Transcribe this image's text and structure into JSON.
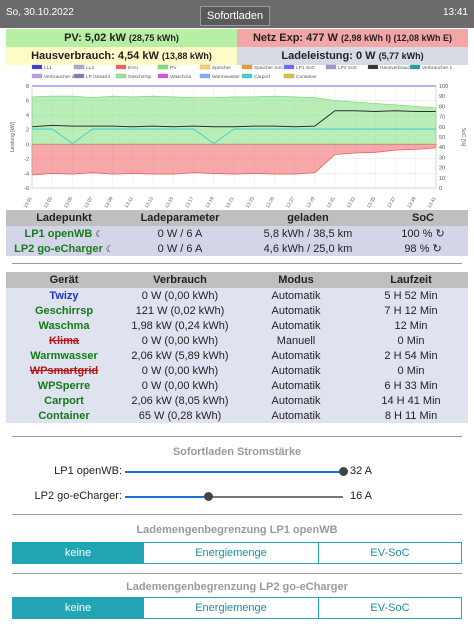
{
  "header": {
    "date": "So, 30.10.2022",
    "title": "Sofortladen",
    "time": "13:41"
  },
  "summary": {
    "pv_label": "PV: 5,02 kW",
    "pv_detail": "(28,75 kWh)",
    "netz_label": "Netz Exp: 477 W",
    "netz_detail": "(2,98 kWh I) (12,08 kWh E)",
    "haus_label": "Hausverbrauch: 4,54 kW",
    "haus_detail": "(13,88 kWh)",
    "lade_label": "Ladeleistung: 0 W",
    "lade_detail": "(5,77 kWh)"
  },
  "chart_data": {
    "type": "area",
    "legend_position": "top",
    "legend": [
      {
        "name": "LL1",
        "color": "#3b3bd6"
      },
      {
        "name": "LL2",
        "color": "#a8a8d8"
      },
      {
        "name": "EVU",
        "color": "#f06060"
      },
      {
        "name": "PV",
        "color": "#80e080"
      },
      {
        "name": "Speicher",
        "color": "#ffd070"
      },
      {
        "name": "Speicher SoC",
        "color": "#f0a020"
      },
      {
        "name": "LP1 SoC",
        "color": "#6a6aff"
      },
      {
        "name": "LP2 SoC",
        "color": "#9a9ada"
      },
      {
        "name": "Hausverbrauch",
        "color": "#303030"
      },
      {
        "name": "Verbraucher 1",
        "color": "#20a0a0"
      },
      {
        "name": "Verbraucher 2",
        "color": "#c0a0e0"
      },
      {
        "name": "LP Gesamt",
        "color": "#8080c0"
      },
      {
        "name": "Geschirrsp",
        "color": "#a0e0a0"
      },
      {
        "name": "Waschma",
        "color": "#e050e0"
      },
      {
        "name": "Warmwasser",
        "color": "#7fb0ff"
      },
      {
        "name": "Carport",
        "color": "#40d0d0"
      },
      {
        "name": "Container",
        "color": "#e0c040"
      }
    ],
    "ylabel_left": "Leistung [kW]",
    "ylabel_right": "SoC [%]",
    "ylim_left": [
      -6,
      8
    ],
    "yticks_left": [
      8,
      6,
      4,
      2,
      0,
      -2,
      -4,
      -6
    ],
    "ylim_right": [
      0,
      100
    ],
    "yticks_right": [
      100,
      90,
      80,
      70,
      60,
      50,
      40,
      30,
      20,
      10,
      0
    ],
    "grid": true,
    "x": [
      "13:01",
      "13:03",
      "13:05",
      "13:07",
      "13:09",
      "13:11",
      "13:13",
      "13:15",
      "13:17",
      "13:19",
      "13:21",
      "13:23",
      "13:25",
      "13:27",
      "13:29",
      "13:31",
      "13:33",
      "13:35",
      "13:37",
      "13:39",
      "13:41"
    ],
    "series": [
      {
        "name": "PV",
        "values": [
          6.5,
          6.6,
          6.6,
          6.4,
          6.6,
          6.5,
          6.6,
          6.5,
          6.4,
          6.4,
          6.5,
          6.5,
          6.6,
          6.5,
          6.4,
          6.0,
          5.8,
          5.6,
          5.4,
          5.2,
          5.0
        ]
      },
      {
        "name": "Hausverbrauch",
        "values": [
          2.4,
          2.6,
          2.5,
          2.5,
          2.5,
          2.4,
          2.5,
          2.4,
          2.5,
          2.4,
          2.4,
          2.5,
          2.5,
          2.4,
          2.5,
          4.6,
          4.6,
          4.5,
          4.6,
          4.5,
          4.5
        ]
      },
      {
        "name": "EVU",
        "values": [
          -4.2,
          -4.0,
          -4.1,
          -3.9,
          -4.1,
          -4.0,
          -4.1,
          -4.1,
          -3.9,
          -4.0,
          -4.1,
          -4.0,
          -4.1,
          -4.1,
          -3.9,
          -1.4,
          -1.2,
          -1.1,
          -0.8,
          -0.7,
          -0.5
        ]
      },
      {
        "name": "Carport",
        "values": [
          2.1,
          2.1,
          0.1,
          2.1,
          2.1,
          2.1,
          2.1,
          2.1,
          2.1,
          0.1,
          2.1,
          2.1,
          2.1,
          2.1,
          2.1,
          2.1,
          2.1,
          2.1,
          2.1,
          2.1,
          2.1
        ]
      },
      {
        "name": "LP1 SoC",
        "values": [
          100,
          100,
          100,
          100,
          100,
          100,
          100,
          100,
          100,
          100,
          100,
          100,
          100,
          100,
          100,
          100,
          100,
          100,
          100,
          100,
          100
        ]
      }
    ]
  },
  "ladepunkt_table": {
    "headers": [
      "Ladepunkt",
      "Ladeparameter",
      "geladen",
      "SoC"
    ],
    "rows": [
      {
        "name": "LP1 openWB",
        "param": "0 W / 6 A",
        "geladen": "5,8 kWh / 38,5 km",
        "soc": "100 %"
      },
      {
        "name": "LP2 go-eCharger",
        "param": "0 W / 6 A",
        "geladen": "4,6 kWh / 25,0 km",
        "soc": "98 %"
      }
    ]
  },
  "geraete_table": {
    "headers": [
      "Gerät",
      "Verbrauch",
      "Modus",
      "Laufzeit"
    ],
    "rows": [
      {
        "name": "Twizy",
        "style": "blue",
        "verbrauch": "0 W (0,00 kWh)",
        "modus": "Automatik",
        "laufzeit": "5 H 52 Min"
      },
      {
        "name": "Geschirrsp",
        "style": "green",
        "verbrauch": "121 W (0,02 kWh)",
        "modus": "Automatik",
        "laufzeit": "7 H 12 Min"
      },
      {
        "name": "Waschma",
        "style": "green",
        "verbrauch": "1,98 kW (0,24 kWh)",
        "modus": "Automatik",
        "laufzeit": "12 Min"
      },
      {
        "name": "Klima",
        "style": "red",
        "verbrauch": "0 W (0,00 kWh)",
        "modus": "Manuell",
        "laufzeit": "0 Min"
      },
      {
        "name": "Warmwasser",
        "style": "green",
        "verbrauch": "2,06 kW (5,89 kWh)",
        "modus": "Automatik",
        "laufzeit": "2 H 54 Min"
      },
      {
        "name": "WPsmartgrid",
        "style": "red",
        "verbrauch": "0 W (0,00 kWh)",
        "modus": "Automatik",
        "laufzeit": "0 Min"
      },
      {
        "name": "WPSperre",
        "style": "green",
        "verbrauch": "0 W (0,00 kWh)",
        "modus": "Automatik",
        "laufzeit": "6 H 33 Min"
      },
      {
        "name": "Carport",
        "style": "green",
        "verbrauch": "2,06 kW (8,05 kWh)",
        "modus": "Automatik",
        "laufzeit": "14 H 41 Min"
      },
      {
        "name": "Container",
        "style": "green",
        "verbrauch": "65 W (0,28 kWh)",
        "modus": "Automatik",
        "laufzeit": "8 H 11 Min"
      }
    ]
  },
  "sofortladen": {
    "title": "Sofortladen Stromstärke",
    "sliders": [
      {
        "label": "LP1 openWB:",
        "value": "32 A",
        "fraction": 1.0
      },
      {
        "label": "LP2 go-eCharger:",
        "value": "16 A",
        "fraction": 0.38
      }
    ]
  },
  "begrenzung_lp1": {
    "title": "Lademengenbegrenzung LP1 openWB",
    "options": [
      "keine",
      "Energiemenge",
      "EV-SoC"
    ],
    "selected": 0
  },
  "begrenzung_lp2": {
    "title": "Lademengenbegrenzung LP2 go-eCharger",
    "options": [
      "keine",
      "Energiemenge",
      "EV-SoC"
    ],
    "selected": 0
  }
}
